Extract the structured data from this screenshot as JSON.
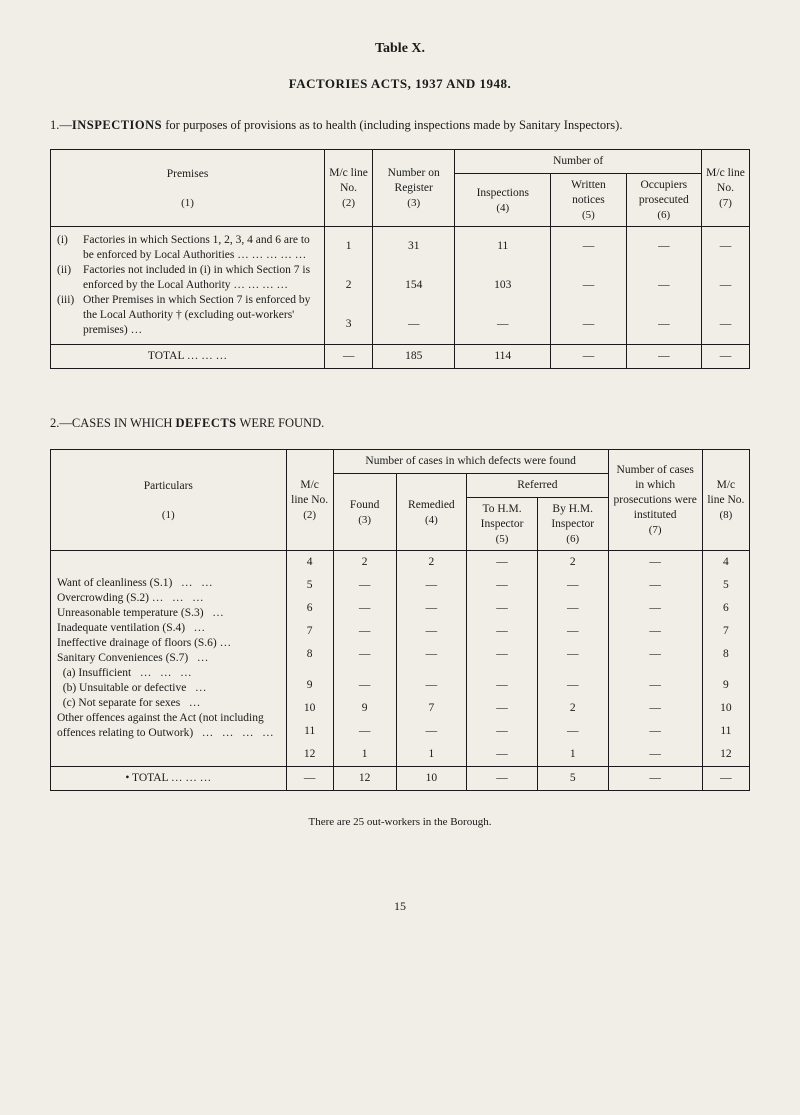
{
  "tableLabel": "Table X.",
  "actsTitle": "FACTORIES ACTS, 1937 AND 1948.",
  "section1": {
    "num": "1.—",
    "lead": "INSPECTIONS",
    "rest": " for purposes of provisions as to health (including inspections made by Sanitary Inspectors)."
  },
  "t1": {
    "h_premises_top": "Premises",
    "h_premises_sub": "(1)",
    "h_mc": "M/c line No.",
    "h_mc_sub": "(2)",
    "h_numreg": "Number on Register",
    "h_numreg_sub": "(3)",
    "h_numberof": "Number of",
    "h_insp": "Inspections",
    "h_insp_sub": "(4)",
    "h_written": "Written notices",
    "h_written_sub": "(5)",
    "h_occ": "Occupiers prosecuted",
    "h_occ_sub": "(6)",
    "h_mc2": "M/c line No.",
    "h_mc2_sub": "(7)",
    "rows": [
      {
        "roman": "(i)",
        "desc": "Factories in which Sections 1, 2, 3, 4 and 6 are to be enforced by Local Authori­ties    …   …   …   …   …",
        "c2": "1",
        "c3": "31",
        "c4": "11",
        "c5": "—",
        "c6": "—",
        "c7": "—"
      },
      {
        "roman": "(ii)",
        "desc": "Factories not included in (i) in which Section 7 is enforced by the Local Authority    …   …   …   …",
        "c2": "2",
        "c3": "154",
        "c4": "103",
        "c5": "—",
        "c6": "—",
        "c7": "—"
      },
      {
        "roman": "(iii)",
        "desc": "Other Premises in which Section 7 is enforced by the Local Authority † (ex­cluding out-workers' premises)   …",
        "c2": "3",
        "c3": "—",
        "c4": "—",
        "c5": "—",
        "c6": "—",
        "c7": "—"
      }
    ],
    "total_label": "TOTAL   …   …   …",
    "total": {
      "c2": "—",
      "c3": "185",
      "c4": "114",
      "c5": "—",
      "c6": "—",
      "c7": "—"
    }
  },
  "section2": {
    "num": "2.—",
    "title": "CASES IN WHICH ",
    "bold": "DEFECTS",
    "rest": " WERE FOUND."
  },
  "t2": {
    "h_part": "Particulars",
    "h_part_sub": "(1)",
    "h_mc": "M/c line No.",
    "h_mc_sub": "(2)",
    "h_cases": "Number of cases in which defects were found",
    "h_found": "Found",
    "h_found_sub": "(3)",
    "h_rem": "Remedied",
    "h_rem_sub": "(4)",
    "h_ref": "Referred",
    "h_tohm": "To H.M. Inspector",
    "h_tohm_sub": "(5)",
    "h_byhm": "By H.M. Inspector",
    "h_byhm_sub": "(6)",
    "h_pros": "Number of cases in which prosecutions were instituted",
    "h_pros_sub": "(7)",
    "h_mc2": "M/c line No.",
    "h_mc2_sub": "(8)",
    "rows": [
      {
        "p": "Want of cleanliness (S.1)   …   …",
        "c2": "4",
        "c3": "2",
        "c4": "2",
        "c5": "—",
        "c6": "2",
        "c7": "—",
        "c8": "4"
      },
      {
        "p": "Overcrowding (S.2) …   …   …",
        "c2": "5",
        "c3": "—",
        "c4": "—",
        "c5": "—",
        "c6": "—",
        "c7": "—",
        "c8": "5"
      },
      {
        "p": "Unreasonable temperature (S.3)   …",
        "c2": "6",
        "c3": "—",
        "c4": "—",
        "c5": "—",
        "c6": "—",
        "c7": "—",
        "c8": "6"
      },
      {
        "p": "Inadequate ventilation (S.4)   …",
        "c2": "7",
        "c3": "—",
        "c4": "—",
        "c5": "—",
        "c6": "—",
        "c7": "—",
        "c8": "7"
      },
      {
        "p": "Ineffective drainage of floors (S.6) …",
        "c2": "8",
        "c3": "—",
        "c4": "—",
        "c5": "—",
        "c6": "—",
        "c7": "—",
        "c8": "8"
      },
      {
        "p": "Sanitary Conveniences (S.7)   …",
        "c2": "",
        "c3": "",
        "c4": "",
        "c5": "",
        "c6": "",
        "c7": "",
        "c8": ""
      },
      {
        "p": "  (a) Insufficient   …   …   …",
        "c2": "9",
        "c3": "—",
        "c4": "—",
        "c5": "—",
        "c6": "—",
        "c7": "—",
        "c8": "9"
      },
      {
        "p": "  (b) Unsuitable or defective   …",
        "c2": "10",
        "c3": "9",
        "c4": "7",
        "c5": "—",
        "c6": "2",
        "c7": "—",
        "c8": "10"
      },
      {
        "p": "  (c) Not separate for sexes   …",
        "c2": "11",
        "c3": "—",
        "c4": "—",
        "c5": "—",
        "c6": "—",
        "c7": "—",
        "c8": "11"
      },
      {
        "p": "Other offences against the Act (not including offences relating to Out­work)   …   …   …   …",
        "c2": "12",
        "c3": "1",
        "c4": "1",
        "c5": "—",
        "c6": "1",
        "c7": "—",
        "c8": "12"
      }
    ],
    "total_label": "•   TOTAL   …   …   …",
    "total": {
      "c2": "—",
      "c3": "12",
      "c4": "10",
      "c5": "—",
      "c6": "5",
      "c7": "—",
      "c8": "—"
    }
  },
  "footnote": "There are 25 out-workers in the Borough.",
  "pageNum": "15"
}
